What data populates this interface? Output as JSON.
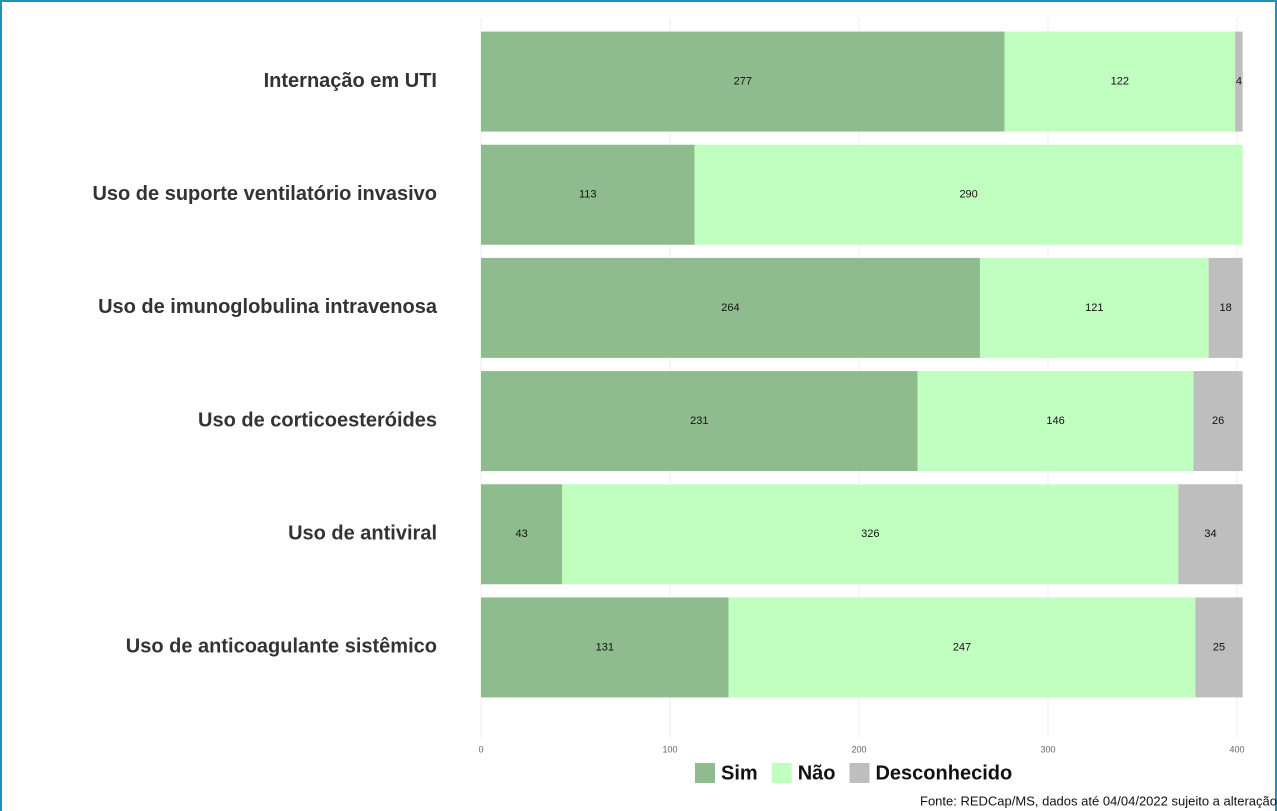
{
  "chart_data": {
    "type": "stacked_bar_horizontal",
    "categories": [
      "Internação em UTI",
      "Uso de suporte ventilatório invasivo",
      "Uso de imunoglobulina intravenosa",
      "Uso de corticoesteróides",
      "Uso de antiviral",
      "Uso de anticoagulante sistêmico"
    ],
    "series": [
      {
        "name": "Sim",
        "color": "#8fbc8f",
        "values": [
          277,
          113,
          264,
          231,
          43,
          131
        ]
      },
      {
        "name": "Não",
        "color": "#c1ffc1",
        "values": [
          122,
          290,
          121,
          146,
          326,
          247
        ]
      },
      {
        "name": "Desconhecido",
        "color": "#bebebe",
        "values": [
          4,
          null,
          18,
          26,
          34,
          25
        ]
      }
    ],
    "xlim": [
      0,
      404
    ],
    "xticks": [
      0,
      100,
      200,
      300,
      400
    ],
    "grid": true,
    "source": "Fonte: REDCap/MS, dados até 04/04/2022 sujeito a alteração"
  }
}
